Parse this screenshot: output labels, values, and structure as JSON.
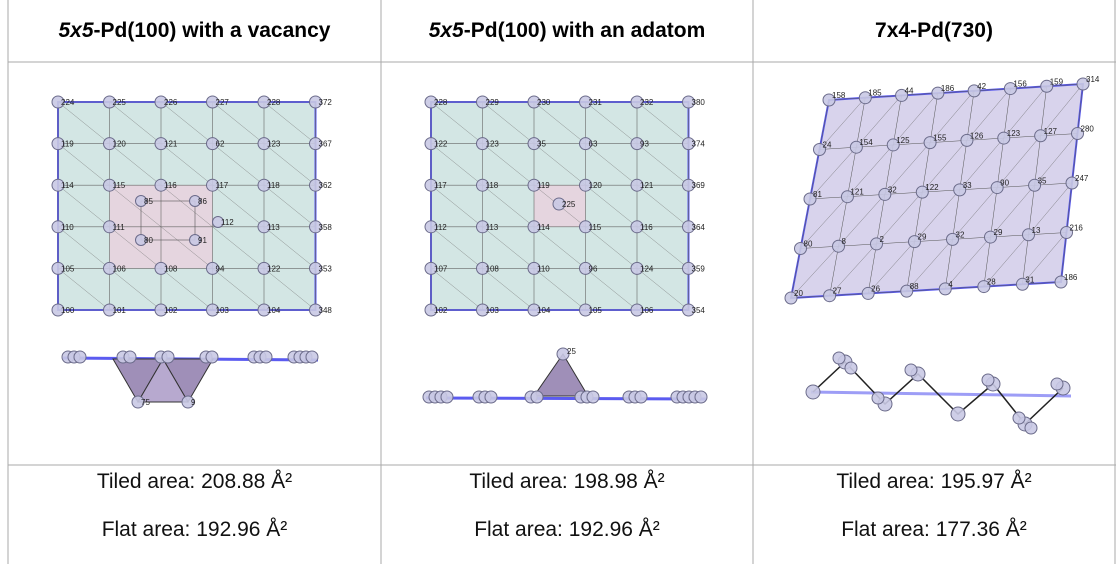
{
  "columns": [
    {
      "title_italic": "5x5",
      "title_rest": "-Pd(100) with a vacancy",
      "tiled_area": "Tiled area: 208.88 Å²",
      "flat_area": "Flat area: 192.96 Å²",
      "grid_labels": [
        [
          "224",
          "225",
          "226",
          "227",
          "228",
          "372"
        ],
        [
          "119",
          "120",
          "121",
          "62",
          "123",
          "367"
        ],
        [
          "114",
          "115",
          "116",
          "117",
          "118",
          "362"
        ],
        [
          "110",
          "111",
          "",
          "",
          "113",
          "358"
        ],
        [
          "105",
          "106",
          "108",
          "94",
          "122",
          "353"
        ],
        [
          "100",
          "101",
          "102",
          "103",
          "104",
          "348"
        ]
      ],
      "inner_labels": [
        "85",
        "86",
        "80",
        "91",
        "112"
      ],
      "side_labels": [
        "75",
        "9"
      ]
    },
    {
      "title_italic": "5x5",
      "title_rest": "-Pd(100) with an adatom",
      "tiled_area": "Tiled area: 198.98 Å²",
      "flat_area": "Flat area: 192.96 Å²",
      "grid_labels": [
        [
          "228",
          "229",
          "230",
          "231",
          "232",
          "380"
        ],
        [
          "122",
          "123",
          "35",
          "63",
          "93",
          "374"
        ],
        [
          "117",
          "118",
          "119",
          "120",
          "121",
          "369"
        ],
        [
          "112",
          "113",
          "114",
          "115",
          "116",
          "364"
        ],
        [
          "107",
          "108",
          "110",
          "96",
          "124",
          "359"
        ],
        [
          "102",
          "103",
          "104",
          "105",
          "106",
          "354"
        ]
      ],
      "inner_labels": [
        "225"
      ],
      "side_labels": [
        "25"
      ]
    },
    {
      "title_italic": "",
      "title_rest": "7x4-Pd(730)",
      "tiled_area": "Tiled area: 195.97 Å²",
      "flat_area": "Flat area: 177.36 Å²",
      "grid_labels": [
        [
          "158",
          "185",
          "44",
          "186",
          "42",
          "156",
          "159",
          "314"
        ],
        [
          "24",
          "154",
          "125",
          "155",
          "126",
          "123",
          "127",
          "280"
        ],
        [
          "81",
          "121",
          "32",
          "122",
          "33",
          "90",
          "35",
          "247"
        ],
        [
          "80",
          "8",
          "2",
          "29",
          "32",
          "29",
          "13",
          "216"
        ],
        [
          "20",
          "27",
          "26",
          "88",
          "4",
          "28",
          "31",
          "186"
        ]
      ],
      "inner_labels": [],
      "side_labels": []
    }
  ],
  "colors": {
    "grid_border": "#999999",
    "cell_fill": "#d3e6e4",
    "cell_edge": "#5b5bf0",
    "vacancy_fill": "#e5d5df",
    "slab_fill": "#d8d3ec",
    "atom_fill": "#c9c9e4",
    "atom_stroke": "#6b6b8a",
    "tri_fill": "#9f8fb8"
  }
}
